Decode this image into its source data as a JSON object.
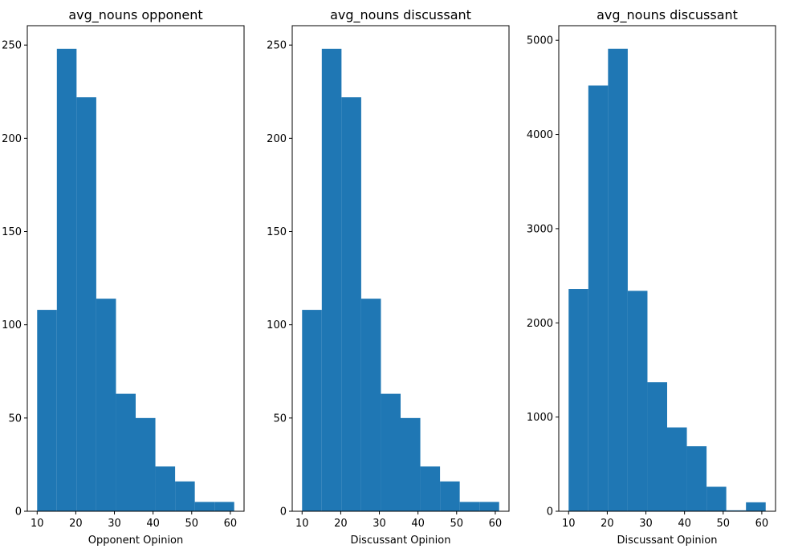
{
  "colors": {
    "bar": "#1f77b4",
    "axis": "#000000",
    "background": "#ffffff"
  },
  "chart_data": [
    {
      "type": "bar",
      "title": "avg_nouns opponent",
      "xlabel": "Opponent Opinion",
      "ylabel": "",
      "bin_edges": [
        10,
        15.1,
        20.2,
        25.3,
        30.4,
        35.5,
        40.6,
        45.7,
        50.8,
        55.9,
        61
      ],
      "values": [
        108,
        248,
        222,
        114,
        63,
        50,
        24,
        16,
        5,
        5
      ],
      "xlim": [
        7.45,
        63.55
      ],
      "ylim": [
        0,
        260.4
      ],
      "xticks": [
        10,
        20,
        30,
        40,
        50,
        60
      ],
      "yticks": [
        0,
        50,
        100,
        150,
        200,
        250
      ],
      "grid": false
    },
    {
      "type": "bar",
      "title": "avg_nouns discussant",
      "xlabel": "Discussant Opinion",
      "ylabel": "",
      "bin_edges": [
        10,
        15.1,
        20.2,
        25.3,
        30.4,
        35.5,
        40.6,
        45.7,
        50.8,
        55.9,
        61
      ],
      "values": [
        108,
        248,
        222,
        114,
        63,
        50,
        24,
        16,
        5,
        5
      ],
      "xlim": [
        7.45,
        63.55
      ],
      "ylim": [
        0,
        260.4
      ],
      "xticks": [
        10,
        20,
        30,
        40,
        50,
        60
      ],
      "yticks": [
        0,
        50,
        100,
        150,
        200,
        250
      ],
      "grid": false
    },
    {
      "type": "bar",
      "title": "avg_nouns discussant",
      "xlabel": "Discussant Opinion",
      "ylabel": "",
      "bin_edges": [
        10,
        15.1,
        20.2,
        25.3,
        30.4,
        35.5,
        40.6,
        45.7,
        50.8,
        55.9,
        61
      ],
      "values": [
        2360,
        4520,
        4910,
        2340,
        1370,
        890,
        690,
        260,
        10,
        95
      ],
      "xlim": [
        7.45,
        63.55
      ],
      "ylim": [
        0,
        5155
      ],
      "xticks": [
        10,
        20,
        30,
        40,
        50,
        60
      ],
      "yticks": [
        0,
        1000,
        2000,
        3000,
        4000,
        5000
      ],
      "grid": false
    }
  ]
}
